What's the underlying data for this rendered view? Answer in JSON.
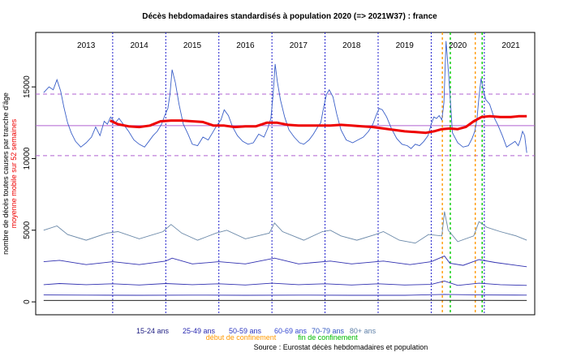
{
  "chart_data": {
    "type": "line",
    "title": "Décès hebdomadaires standardisés à population 2020 (=> 2021W37) : france",
    "ylabel": "nombre de décès toutes causes par tranche d'âge",
    "ylabel2": "moyenne mobile sur 52 semaines",
    "source": "Source : Eurostat décès hebdomadaires et population",
    "ylim": [
      -900,
      18800
    ],
    "xlim": [
      2012.55,
      2021.95
    ],
    "y_ticks": [
      0,
      5000,
      10000,
      15000
    ],
    "years": [
      "2013",
      "2014",
      "2015",
      "2016",
      "2017",
      "2018",
      "2019",
      "2020",
      "2021"
    ],
    "year_positions": [
      2013.5,
      2014.5,
      2015.5,
      2016.5,
      2017.5,
      2018.5,
      2019.5,
      2020.5,
      2021.5
    ],
    "year_boundaries": [
      2014,
      2015,
      2016,
      2017,
      2018,
      2019,
      2020,
      2021
    ],
    "hlines": {
      "mean": 12300,
      "upper": 14500,
      "lower": 10200
    },
    "confinement_start": [
      2020.21,
      2020.83
    ],
    "confinement_end": [
      2020.36,
      2020.96
    ],
    "total": {
      "x": [
        2012.7,
        2012.8,
        2012.88,
        2012.95,
        2013.02,
        2013.08,
        2013.15,
        2013.22,
        2013.3,
        2013.4,
        2013.5,
        2013.6,
        2013.68,
        2013.76,
        2013.84,
        2013.9,
        2013.96,
        2014.05,
        2014.12,
        2014.2,
        2014.3,
        2014.4,
        2014.5,
        2014.6,
        2014.68,
        2014.76,
        2014.84,
        2014.92,
        2014.98,
        2015.04,
        2015.08,
        2015.12,
        2015.18,
        2015.25,
        2015.33,
        2015.42,
        2015.5,
        2015.6,
        2015.7,
        2015.8,
        2015.88,
        2015.96,
        2016.04,
        2016.1,
        2016.18,
        2016.26,
        2016.35,
        2016.45,
        2016.55,
        2016.65,
        2016.75,
        2016.85,
        2016.92,
        2016.98,
        2017.02,
        2017.06,
        2017.1,
        2017.16,
        2017.24,
        2017.32,
        2017.42,
        2017.52,
        2017.6,
        2017.7,
        2017.78,
        2017.86,
        2017.92,
        2017.98,
        2018.03,
        2018.08,
        2018.15,
        2018.22,
        2018.3,
        2018.4,
        2018.52,
        2018.62,
        2018.72,
        2018.82,
        2018.9,
        2018.96,
        2019.02,
        2019.08,
        2019.16,
        2019.25,
        2019.35,
        2019.45,
        2019.55,
        2019.62,
        2019.7,
        2019.78,
        2019.86,
        2019.94,
        2020.0,
        2020.05,
        2020.1,
        2020.15,
        2020.2,
        2020.24,
        2020.28,
        2020.33,
        2020.4,
        2020.5,
        2020.6,
        2020.7,
        2020.77,
        2020.82,
        2020.86,
        2020.9,
        2020.94,
        2020.98,
        2021.03,
        2021.1,
        2021.18,
        2021.26,
        2021.34,
        2021.42,
        2021.5,
        2021.58,
        2021.64,
        2021.68,
        2021.72,
        2021.76,
        2021.8
      ],
      "values": [
        14600,
        15000,
        14800,
        15500,
        14700,
        13600,
        12500,
        11800,
        11200,
        10800,
        11100,
        11500,
        12200,
        11600,
        12600,
        12400,
        12900,
        12500,
        12800,
        12400,
        11900,
        11300,
        11000,
        10800,
        11200,
        11600,
        11900,
        12400,
        13000,
        13500,
        14500,
        16200,
        15300,
        13800,
        12400,
        11700,
        11000,
        10900,
        11500,
        11300,
        11800,
        12300,
        12700,
        13400,
        13000,
        12200,
        11600,
        11200,
        11000,
        11100,
        11700,
        11500,
        12100,
        12800,
        14400,
        16600,
        15400,
        14100,
        12900,
        12000,
        11500,
        11100,
        11000,
        11300,
        11700,
        12200,
        12500,
        13700,
        14500,
        14800,
        14300,
        13100,
        12000,
        11300,
        11100,
        11300,
        11500,
        11900,
        12400,
        13000,
        13500,
        13400,
        12900,
        12100,
        11400,
        11000,
        10900,
        10700,
        11000,
        10900,
        11200,
        11600,
        12400,
        12900,
        12800,
        13000,
        12700,
        13900,
        18200,
        15800,
        11800,
        11100,
        10800,
        10900,
        11400,
        11900,
        12700,
        14300,
        15600,
        14800,
        14100,
        13800,
        12900,
        12300,
        11600,
        10800,
        11000,
        11200,
        10900,
        11300,
        11900,
        11600,
        10400
      ]
    },
    "moving_average": {
      "x": [
        2013.95,
        2014.1,
        2014.3,
        2014.5,
        2014.7,
        2014.9,
        2015.1,
        2015.3,
        2015.5,
        2015.7,
        2015.9,
        2016.1,
        2016.3,
        2016.5,
        2016.7,
        2016.9,
        2017.1,
        2017.3,
        2017.5,
        2017.7,
        2017.9,
        2018.1,
        2018.3,
        2018.5,
        2018.7,
        2018.9,
        2019.1,
        2019.3,
        2019.5,
        2019.7,
        2019.9,
        2020.05,
        2020.2,
        2020.35,
        2020.5,
        2020.65,
        2020.8,
        2020.95,
        2021.1,
        2021.3,
        2021.5,
        2021.65,
        2021.8
      ],
      "values": [
        12650,
        12400,
        12250,
        12200,
        12300,
        12600,
        12650,
        12650,
        12600,
        12550,
        12300,
        12300,
        12200,
        12250,
        12250,
        12500,
        12500,
        12350,
        12300,
        12300,
        12300,
        12300,
        12350,
        12300,
        12250,
        12200,
        12100,
        12000,
        11900,
        11850,
        11800,
        11900,
        12050,
        12100,
        12050,
        12200,
        12600,
        12900,
        12950,
        12900,
        12900,
        12950,
        12950
      ]
    },
    "age_groups": [
      {
        "name": "80+ ans",
        "color": "#6a88a8",
        "x": [
          2012.7,
          2012.95,
          2013.15,
          2013.5,
          2013.9,
          2014.1,
          2014.5,
          2014.95,
          2015.1,
          2015.3,
          2015.6,
          2015.95,
          2016.15,
          2016.5,
          2016.95,
          2017.05,
          2017.2,
          2017.6,
          2017.95,
          2018.1,
          2018.3,
          2018.6,
          2018.95,
          2019.1,
          2019.4,
          2019.7,
          2019.95,
          2020.2,
          2020.25,
          2020.32,
          2020.5,
          2020.8,
          2020.9,
          2021.05,
          2021.3,
          2021.6,
          2021.8
        ],
        "values": [
          5000,
          5300,
          4700,
          4300,
          4800,
          4900,
          4400,
          4900,
          5400,
          4800,
          4300,
          4800,
          5000,
          4400,
          4800,
          5500,
          4900,
          4300,
          4900,
          5000,
          4600,
          4300,
          4700,
          4900,
          4300,
          4100,
          4700,
          4600,
          6300,
          5000,
          4200,
          4600,
          5600,
          5200,
          4900,
          4600,
          4300
        ]
      },
      {
        "name": "70-79 ans",
        "color": "#3030b0",
        "x": [
          2012.7,
          2013.0,
          2013.5,
          2014.0,
          2014.5,
          2015.0,
          2015.12,
          2015.5,
          2016.0,
          2016.5,
          2017.05,
          2017.5,
          2018.1,
          2018.5,
          2019.1,
          2019.6,
          2020.0,
          2020.25,
          2020.35,
          2020.6,
          2020.9,
          2021.2,
          2021.5,
          2021.8
        ],
        "values": [
          2800,
          2900,
          2600,
          2800,
          2600,
          2850,
          3050,
          2650,
          2800,
          2650,
          3050,
          2650,
          2850,
          2650,
          2850,
          2600,
          2800,
          3200,
          2700,
          2550,
          2950,
          2750,
          2600,
          2450
        ]
      },
      {
        "name": "60-69 ans",
        "color": "#3030b0",
        "x": [
          2012.7,
          2013.0,
          2013.5,
          2014.0,
          2014.5,
          2015.0,
          2015.5,
          2016.0,
          2016.5,
          2017.0,
          2017.5,
          2018.0,
          2018.5,
          2019.0,
          2019.5,
          2020.0,
          2020.25,
          2020.5,
          2020.9,
          2021.3,
          2021.8
        ],
        "values": [
          1200,
          1280,
          1200,
          1260,
          1180,
          1280,
          1200,
          1260,
          1180,
          1300,
          1200,
          1260,
          1180,
          1260,
          1180,
          1220,
          1450,
          1150,
          1300,
          1200,
          1150
        ]
      },
      {
        "name": "50-59 ans",
        "color": "#3030b0",
        "x": [
          2012.7,
          2013.5,
          2014.5,
          2015.5,
          2016.5,
          2017.5,
          2018.5,
          2019.5,
          2020.25,
          2020.9,
          2021.8
        ],
        "values": [
          480,
          470,
          460,
          470,
          460,
          470,
          460,
          460,
          520,
          480,
          470
        ]
      },
      {
        "name": "25-49 ans",
        "color": "#000000",
        "x": [
          2012.7,
          2014.5,
          2016.5,
          2018.5,
          2020.25,
          2021.8
        ],
        "values": [
          100,
          100,
          100,
          100,
          110,
          100
        ]
      }
    ],
    "legend_row1": [
      {
        "label": "15-24 ans",
        "color": "#1a1a80"
      },
      {
        "label": "25-49 ans",
        "color": "#2828b0"
      },
      {
        "label": "50-59 ans",
        "color": "#2b35c0"
      },
      {
        "label": "60-69 ans",
        "color": "#3347d0"
      },
      {
        "label": "70-79 ans",
        "color": "#2f56c0"
      },
      {
        "label": "80+ ans",
        "color": "#5e80a8"
      }
    ],
    "legend_row2": [
      {
        "label": "début de confinement",
        "color": "#ff9900"
      },
      {
        "label": "fin de confinement",
        "color": "#00bb00"
      }
    ],
    "colors": {
      "total": "#3a5fc8",
      "moving_average": "#ee0000",
      "mean_line": "#b060d0",
      "limit_lines": "#b060d0",
      "year_separator": "#2020cc",
      "confinement_start": "#ff9900",
      "confinement_end": "#00cc00",
      "ylabel": "#000000",
      "ylabel2": "#ee0000"
    }
  }
}
